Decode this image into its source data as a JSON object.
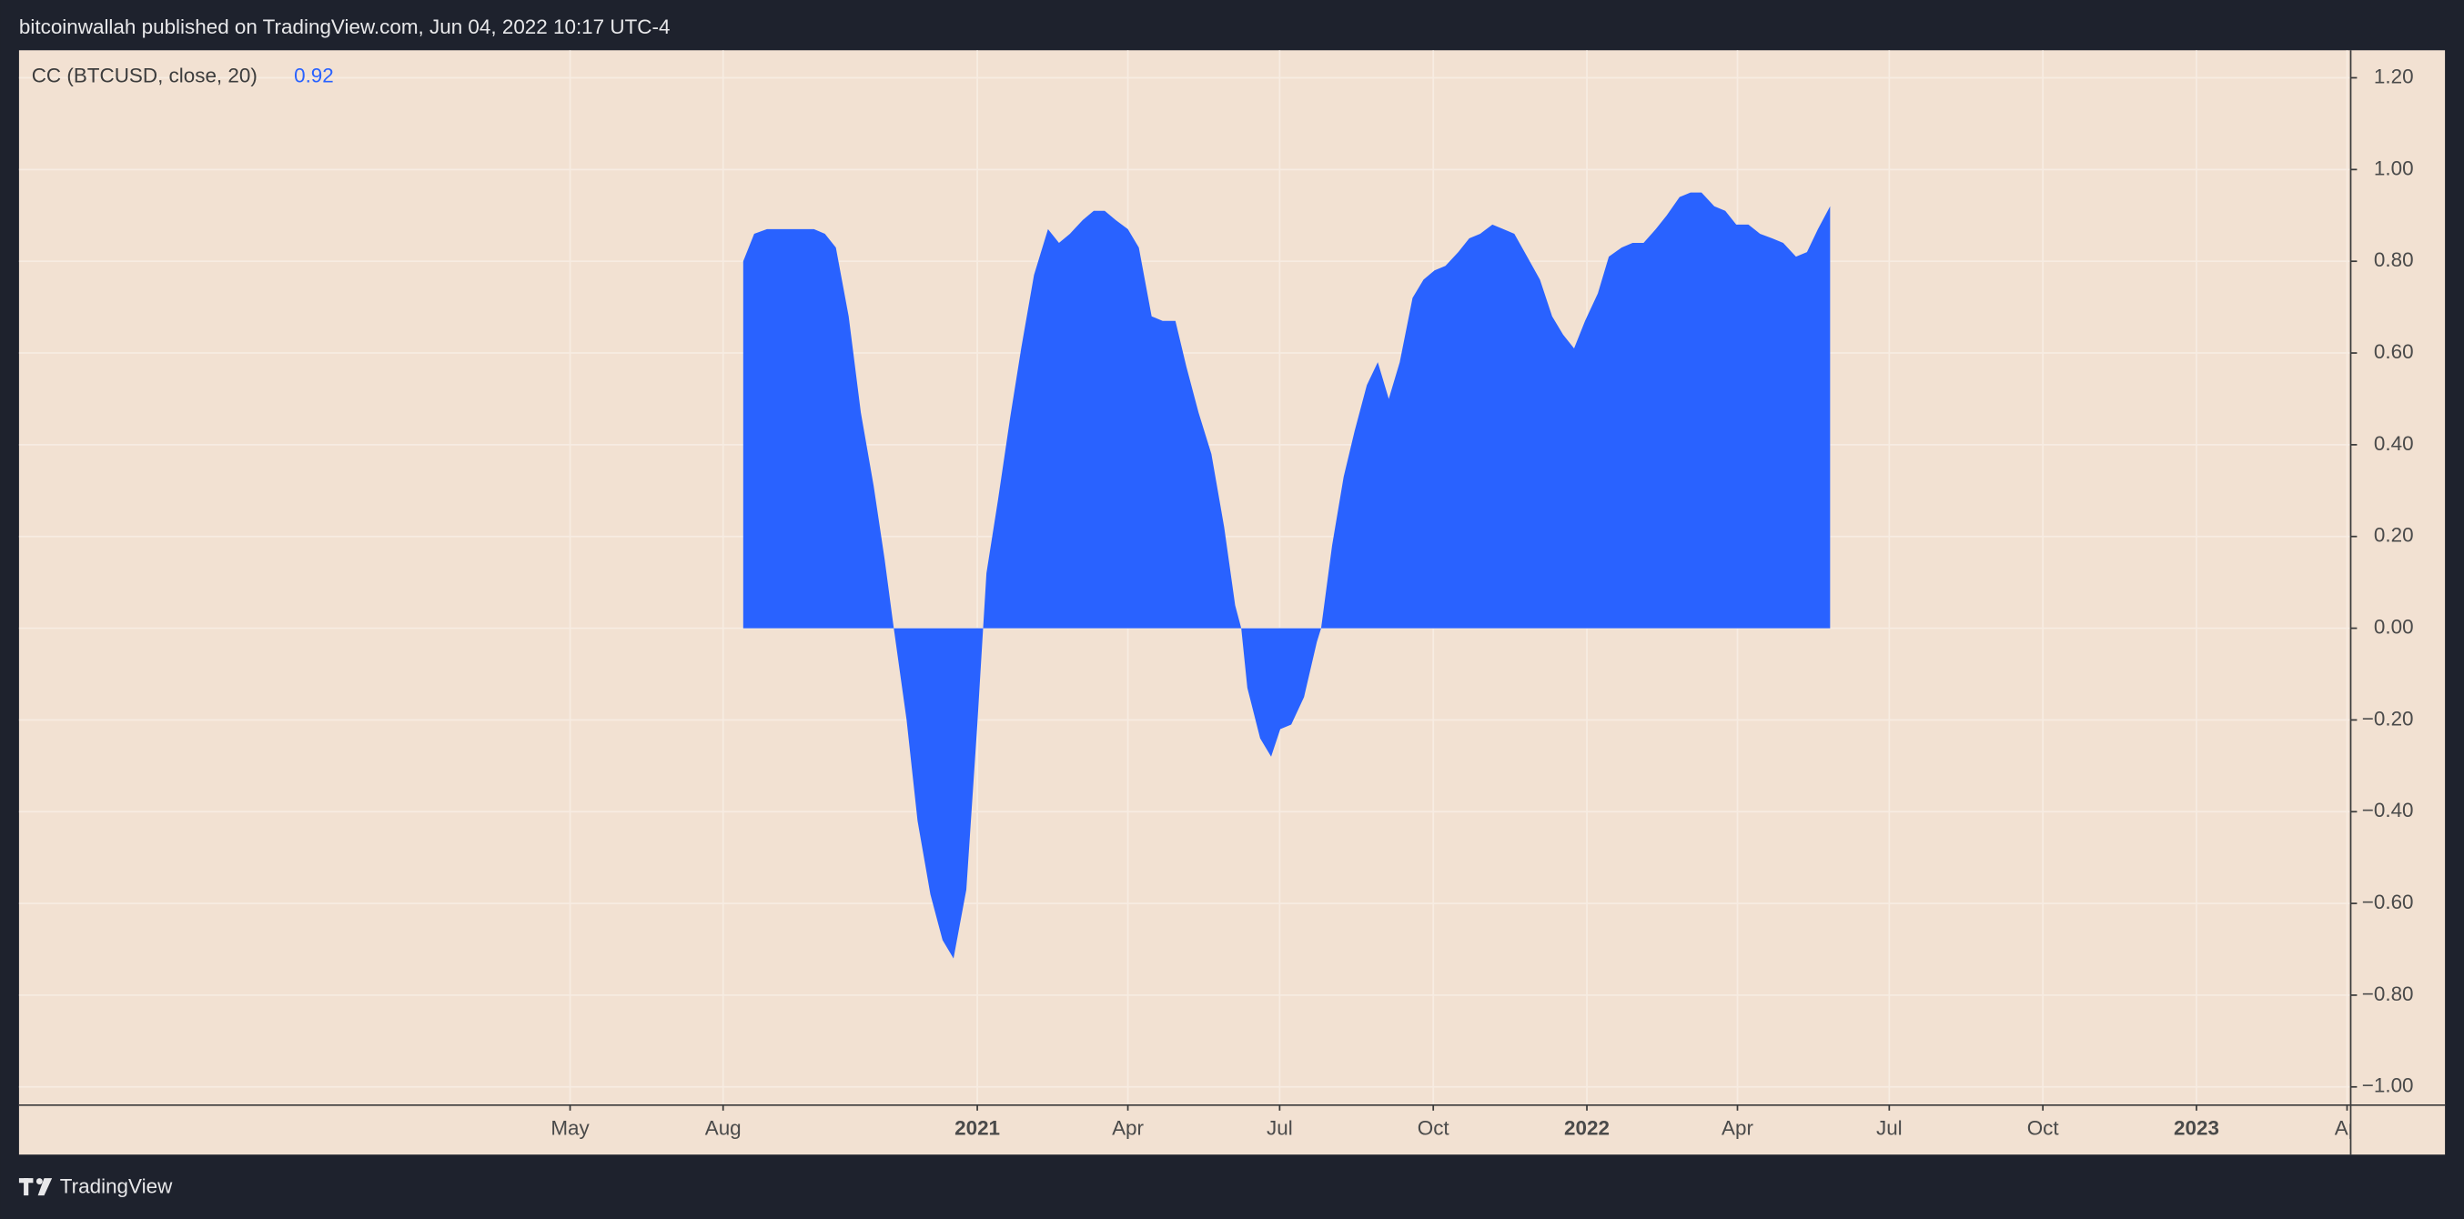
{
  "header": "bitcoinwallah published on TradingView.com, Jun 04, 2022 10:17 UTC-4",
  "brand": "TradingView",
  "chart_data": {
    "type": "area",
    "series": [
      {
        "name": "CC (BTCUSD, close, 20)",
        "color": "#2962ff",
        "x": [
          2020.616,
          2020.634,
          2020.655,
          2020.678,
          2020.698,
          2020.716,
          2020.732,
          2020.75,
          2020.768,
          2020.789,
          2020.809,
          2020.83,
          2020.848,
          2020.863,
          2020.884,
          2020.902,
          2020.923,
          2020.943,
          2020.961,
          2020.982,
          2021.0,
          2021.015,
          2021.034,
          2021.054,
          2021.072,
          2021.093,
          2021.116,
          2021.134,
          2021.152,
          2021.173,
          2021.191,
          2021.209,
          2021.227,
          2021.247,
          2021.265,
          2021.286,
          2021.304,
          2021.325,
          2021.343,
          2021.363,
          2021.384,
          2021.405,
          2021.423,
          2021.433,
          2021.443,
          2021.464,
          2021.482,
          2021.497,
          2021.515,
          2021.536,
          2021.557,
          2021.564,
          2021.582,
          2021.601,
          2021.619,
          2021.639,
          2021.657,
          2021.675,
          2021.693,
          2021.714,
          2021.732,
          2021.75,
          2021.768,
          2021.789,
          2021.807,
          2021.825,
          2021.845,
          2021.863,
          2021.881,
          2021.902,
          2021.923,
          2021.943,
          2021.961,
          2021.979,
          2021.997,
          2022.018,
          2022.036,
          2022.057,
          2022.075,
          2022.093,
          2022.113,
          2022.131,
          2022.152,
          2022.17,
          2022.188,
          2022.209,
          2022.227,
          2022.245,
          2022.265,
          2022.284,
          2022.304,
          2022.322,
          2022.343,
          2022.361,
          2022.379,
          2022.399
        ],
        "values": [
          0.8,
          0.86,
          0.87,
          0.87,
          0.87,
          0.87,
          0.87,
          0.86,
          0.83,
          0.68,
          0.47,
          0.31,
          0.15,
          0.0,
          -0.2,
          -0.42,
          -0.58,
          -0.68,
          -0.72,
          -0.57,
          -0.21,
          0.12,
          0.28,
          0.46,
          0.61,
          0.77,
          0.87,
          0.84,
          0.86,
          0.89,
          0.91,
          0.91,
          0.89,
          0.87,
          0.83,
          0.68,
          0.67,
          0.67,
          0.57,
          0.47,
          0.38,
          0.22,
          0.05,
          0.0,
          -0.13,
          -0.24,
          -0.28,
          -0.22,
          -0.21,
          -0.15,
          -0.03,
          0.0,
          0.18,
          0.33,
          0.43,
          0.53,
          0.58,
          0.5,
          0.58,
          0.72,
          0.76,
          0.78,
          0.79,
          0.82,
          0.85,
          0.86,
          0.88,
          0.87,
          0.86,
          0.81,
          0.76,
          0.68,
          0.64,
          0.61,
          0.67,
          0.73,
          0.81,
          0.83,
          0.84,
          0.84,
          0.87,
          0.9,
          0.94,
          0.95,
          0.95,
          0.92,
          0.91,
          0.88,
          0.88,
          0.86,
          0.85,
          0.84,
          0.81,
          0.82,
          0.87,
          0.92
        ]
      }
    ],
    "xlim": [
      2019.428,
      2023.253
    ],
    "xticks": [
      {
        "value": 2020.332,
        "label": "May"
      },
      {
        "value": 2020.583,
        "label": "Aug"
      },
      2021,
      {
        "value": 2021.247,
        "label": "Apr"
      },
      {
        "value": 2021.496,
        "label": "Jul"
      },
      {
        "value": 2021.748,
        "label": "Oct"
      },
      2022,
      {
        "value": 2022.247,
        "label": "Apr"
      },
      {
        "value": 2022.496,
        "label": "Jul"
      },
      {
        "value": 2022.748,
        "label": "Oct"
      },
      2023,
      {
        "value": 2023.247,
        "label": "Ap"
      }
    ],
    "ylim": [
      -1.038,
      1.26
    ],
    "yticks": [
      {
        "value": -1,
        "label": "−1.00"
      },
      {
        "value": -0.8,
        "label": "−0.80"
      },
      {
        "value": -0.6,
        "label": "−0.60"
      },
      {
        "value": -0.4,
        "label": "−0.40"
      },
      {
        "value": -0.2,
        "label": "−0.20"
      },
      {
        "value": 0,
        "label": "0.00"
      },
      {
        "value": 0.2,
        "label": "0.20"
      },
      {
        "value": 0.4,
        "label": "0.40"
      },
      {
        "value": 0.6,
        "label": "0.60"
      },
      {
        "value": 0.8,
        "label": "0.80"
      },
      {
        "value": 1,
        "label": "1.00"
      },
      {
        "value": 1.2,
        "label": "1.20"
      }
    ],
    "grid": true
  }
}
